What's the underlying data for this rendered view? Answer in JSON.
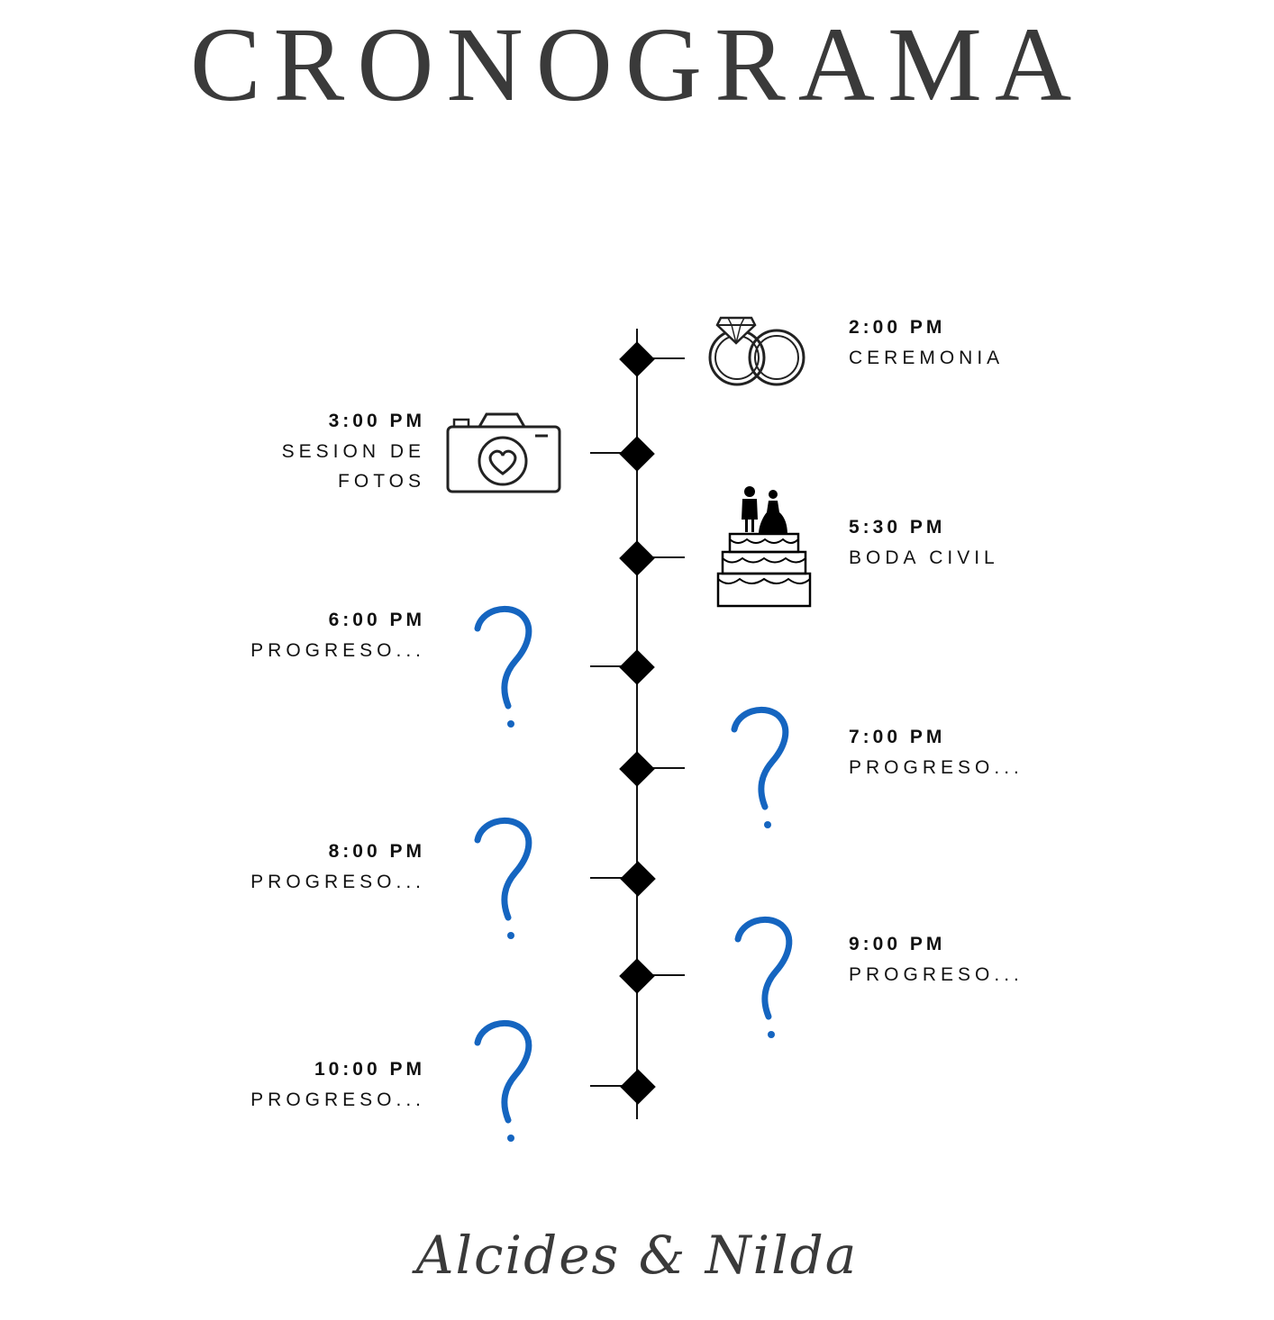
{
  "title": "CRONOGRAMA",
  "signature": "Alcides & Nilda",
  "colors": {
    "text": "#111111",
    "title": "#3a3a3a",
    "accent": "#1565c0"
  },
  "events": [
    {
      "time": "2:00 PM",
      "label": "CEREMONIA",
      "side": "right",
      "icon": "wedding-rings-icon"
    },
    {
      "time": "3:00 PM",
      "label": "SESION DE\nFOTOS",
      "side": "left",
      "icon": "camera-heart-icon"
    },
    {
      "time": "5:30 PM",
      "label": "BODA CIVIL",
      "side": "right",
      "icon": "wedding-cake-icon"
    },
    {
      "time": "6:00 PM",
      "label": "PROGRESO...",
      "side": "left",
      "icon": "question-mark-icon"
    },
    {
      "time": "7:00 PM",
      "label": "PROGRESO...",
      "side": "right",
      "icon": "question-mark-icon"
    },
    {
      "time": "8:00 PM",
      "label": "PROGRESO...",
      "side": "left",
      "icon": "question-mark-icon"
    },
    {
      "time": "9:00 PM",
      "label": "PROGRESO...",
      "side": "right",
      "icon": "question-mark-icon"
    },
    {
      "time": "10:00 PM",
      "label": "PROGRESO...",
      "side": "left",
      "icon": "question-mark-icon"
    }
  ]
}
